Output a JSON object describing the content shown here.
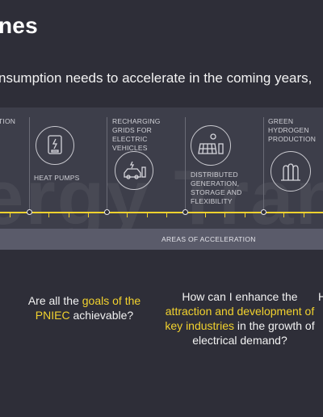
{
  "title": "nes",
  "subtitle": "nsumption needs to accelerate in the coming years,",
  "watermark": "ergy Transiti",
  "categories": [
    {
      "label": "TION",
      "icon": "none"
    },
    {
      "label": "HEAT PUMPS",
      "icon": "heat-pump-icon"
    },
    {
      "label": "RECHARGING\nGRIDS FOR\nELECTRIC\nVEHICLES",
      "icon": "electric-vehicle-icon"
    },
    {
      "label": "DISTRIBUTED\nGENERATION,\nSTORAGE AND\nFLEXIBILITY",
      "icon": "solar-storage-icon"
    },
    {
      "label": "GREEN\nHYDROGEN\nPRODUCTION",
      "icon": "hydrogen-icon"
    }
  ],
  "accel_label": "AREAS OF ACCELERATION",
  "questions": [
    {
      "pre": "Are all the ",
      "hl": "goals of the PNIEC",
      "post": " achievable?"
    },
    {
      "pre": "How can I enhance the ",
      "hl": "attraction and development of key industries",
      "post": " in the growth of electrical demand?"
    },
    {
      "pre": "H",
      "hl": "",
      "post": ""
    }
  ],
  "colors": {
    "background": "#2e2e38",
    "band": "#3d3e4a",
    "accent": "#f2d22e",
    "accel_bar": "#5a5b6a"
  }
}
